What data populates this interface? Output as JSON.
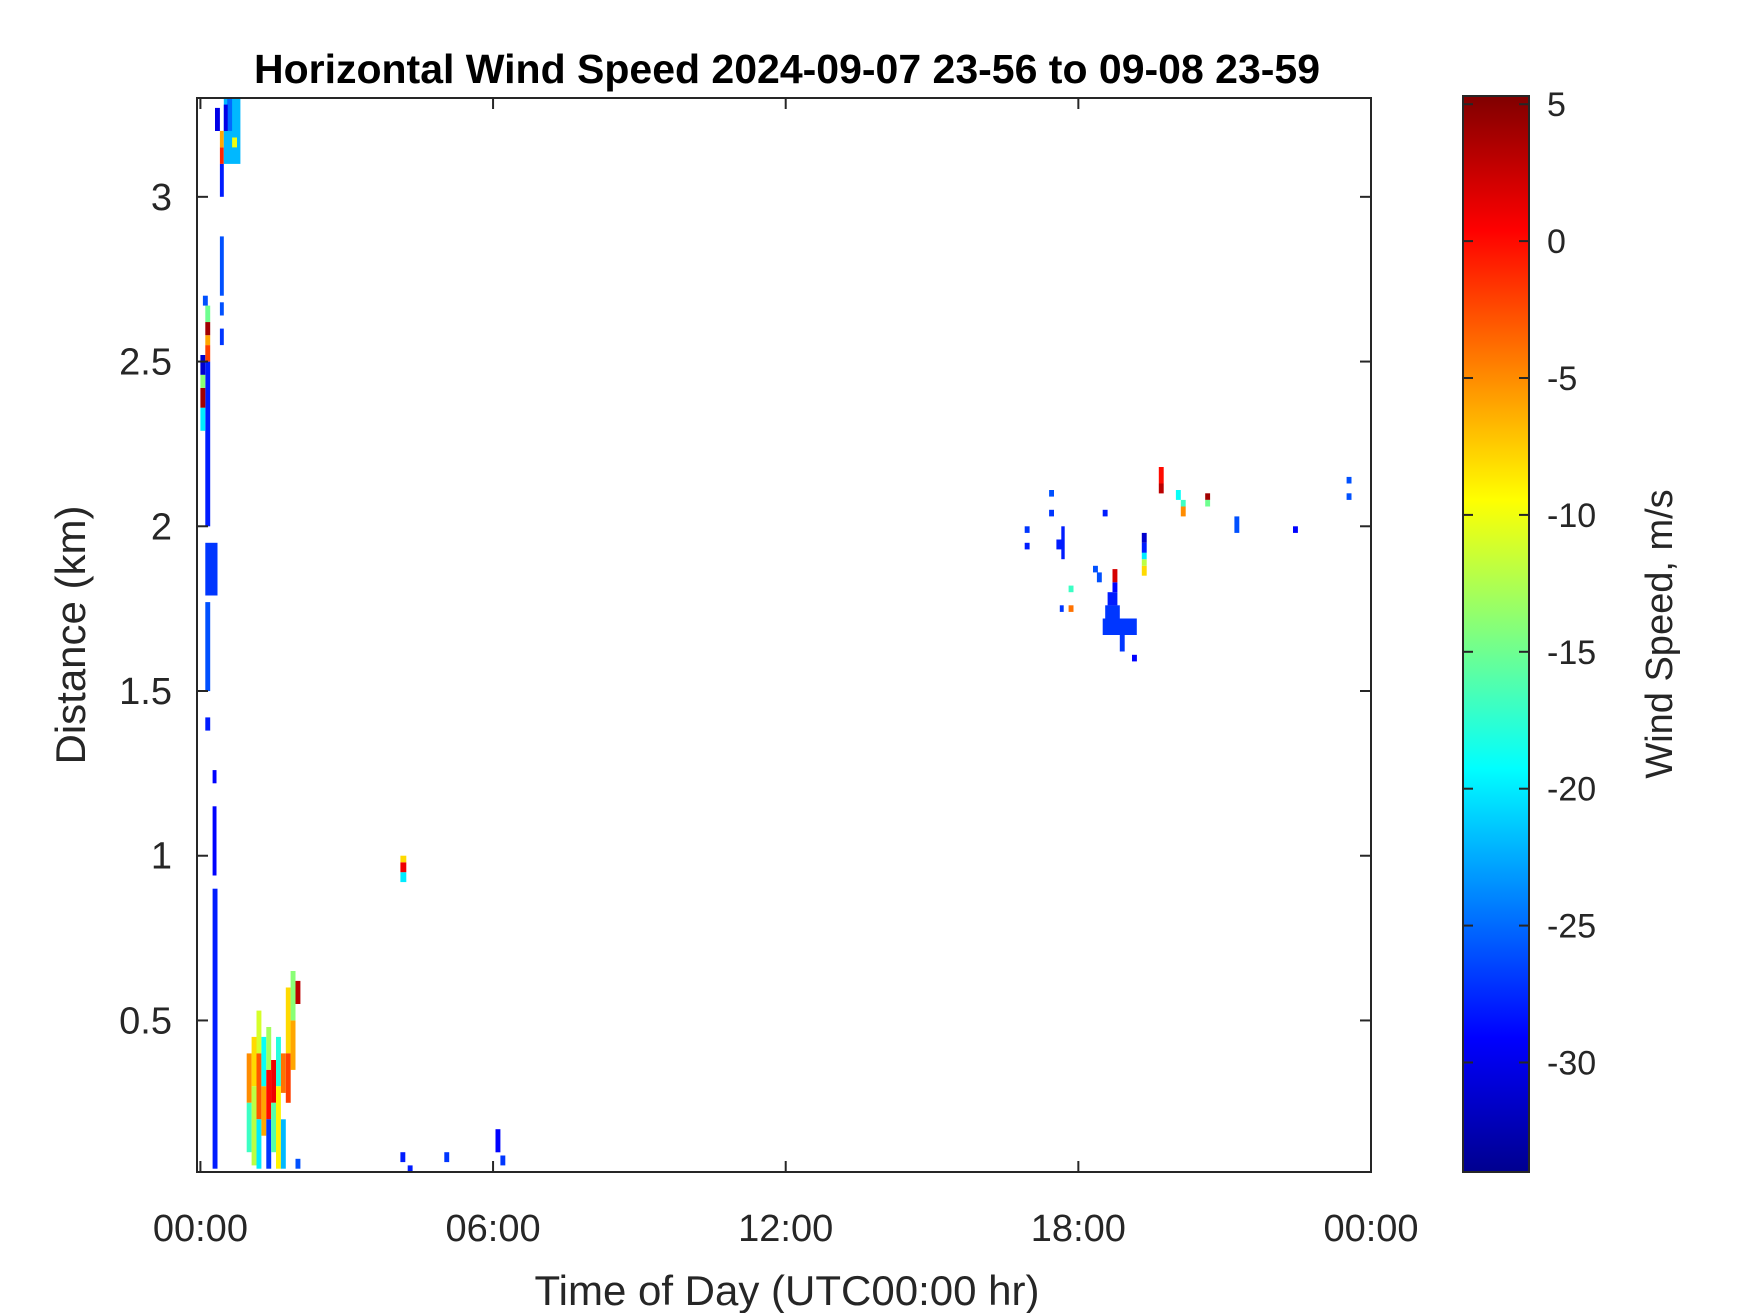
{
  "chart_data": {
    "type": "heatmap",
    "title": "Horizontal Wind Speed 2024-09-07 23-56 to 09-08 23-59",
    "xlabel": "Time of Day (UTC00:00 hr)",
    "ylabel": "Distance (km)",
    "x_ticks": [
      "00:00",
      "06:00",
      "12:00",
      "18:00",
      "00:00"
    ],
    "x_tick_hours": [
      0,
      6,
      12,
      18,
      24
    ],
    "xlim_hours": [
      -0.07,
      24.0
    ],
    "y_ticks": [
      "0.5",
      "1",
      "1.5",
      "2",
      "2.5",
      "3"
    ],
    "y_tick_values": [
      0.5,
      1.0,
      1.5,
      2.0,
      2.5,
      3.0
    ],
    "ylim": [
      0.04,
      3.3
    ],
    "grid": false,
    "colorbar": {
      "label": "Wind Speed, m/s",
      "range": [
        -34,
        5.3
      ],
      "ticks": [
        "5",
        "0",
        "-5",
        "-10",
        "-15",
        "-20",
        "-25",
        "-30"
      ],
      "tick_values": [
        5,
        0,
        -5,
        -10,
        -15,
        -20,
        -25,
        -30
      ],
      "colormap": "jet"
    },
    "cells": [
      {
        "t0": 0.25,
        "t1": 0.35,
        "d0": 0.05,
        "d1": 0.9,
        "v": -28
      },
      {
        "t0": 0.25,
        "t1": 0.33,
        "d0": 0.94,
        "d1": 1.15,
        "v": -29
      },
      {
        "t0": 0.25,
        "t1": 0.33,
        "d0": 1.22,
        "d1": 1.26,
        "v": -29
      },
      {
        "t0": 0.1,
        "t1": 0.2,
        "d0": 1.38,
        "d1": 1.42,
        "v": -28
      },
      {
        "t0": 0.1,
        "t1": 0.2,
        "d0": 1.5,
        "d1": 1.77,
        "v": -26
      },
      {
        "t0": 0.1,
        "t1": 0.35,
        "d0": 1.79,
        "d1": 1.95,
        "v": -27
      },
      {
        "t0": 0.1,
        "t1": 0.2,
        "d0": 2.0,
        "d1": 2.5,
        "v": -28
      },
      {
        "t0": 0.0,
        "t1": 0.1,
        "d0": 2.29,
        "d1": 2.36,
        "v": -20
      },
      {
        "t0": 0.0,
        "t1": 0.1,
        "d0": 2.36,
        "d1": 2.42,
        "v": 4
      },
      {
        "t0": 0.0,
        "t1": 0.1,
        "d0": 2.42,
        "d1": 2.46,
        "v": -14
      },
      {
        "t0": 0.0,
        "t1": 0.1,
        "d0": 2.46,
        "d1": 2.52,
        "v": -31
      },
      {
        "t0": 0.1,
        "t1": 0.2,
        "d0": 2.5,
        "d1": 2.55,
        "v": -2
      },
      {
        "t0": 0.1,
        "t1": 0.2,
        "d0": 2.55,
        "d1": 2.58,
        "v": -6
      },
      {
        "t0": 0.1,
        "t1": 0.2,
        "d0": 2.58,
        "d1": 2.62,
        "v": 4
      },
      {
        "t0": 0.1,
        "t1": 0.2,
        "d0": 2.62,
        "d1": 2.67,
        "v": -15
      },
      {
        "t0": 0.05,
        "t1": 0.15,
        "d0": 2.67,
        "d1": 2.7,
        "v": -26
      },
      {
        "t0": 0.4,
        "t1": 0.48,
        "d0": 2.55,
        "d1": 2.6,
        "v": -27
      },
      {
        "t0": 0.4,
        "t1": 0.48,
        "d0": 2.64,
        "d1": 2.68,
        "v": -26
      },
      {
        "t0": 0.4,
        "t1": 0.48,
        "d0": 2.7,
        "d1": 2.88,
        "v": -26
      },
      {
        "t0": 0.4,
        "t1": 0.48,
        "d0": 3.0,
        "d1": 3.1,
        "v": -28
      },
      {
        "t0": 0.4,
        "t1": 0.48,
        "d0": 3.1,
        "d1": 3.15,
        "v": -1
      },
      {
        "t0": 0.4,
        "t1": 0.48,
        "d0": 3.15,
        "d1": 3.2,
        "v": -6
      },
      {
        "t0": 0.3,
        "t1": 0.4,
        "d0": 3.2,
        "d1": 3.27,
        "v": -30
      },
      {
        "t0": 0.48,
        "t1": 0.82,
        "d0": 3.1,
        "d1": 3.3,
        "v": -22
      },
      {
        "t0": 0.55,
        "t1": 0.65,
        "d0": 3.2,
        "d1": 3.3,
        "v": -25
      },
      {
        "t0": 0.65,
        "t1": 0.75,
        "d0": 3.15,
        "d1": 3.18,
        "v": -10
      },
      {
        "t0": 0.48,
        "t1": 0.56,
        "d0": 3.2,
        "d1": 3.28,
        "v": -30
      },
      {
        "t0": 0.95,
        "t1": 1.05,
        "d0": 0.25,
        "d1": 0.4,
        "v": -5
      },
      {
        "t0": 0.95,
        "t1": 1.05,
        "d0": 0.1,
        "d1": 0.25,
        "v": -17
      },
      {
        "t0": 1.05,
        "t1": 1.15,
        "d0": 0.3,
        "d1": 0.45,
        "v": -8
      },
      {
        "t0": 1.05,
        "t1": 1.15,
        "d0": 0.06,
        "d1": 0.3,
        "v": -12
      },
      {
        "t0": 1.15,
        "t1": 1.25,
        "d0": 0.4,
        "d1": 0.53,
        "v": -11
      },
      {
        "t0": 1.15,
        "t1": 1.25,
        "d0": 0.2,
        "d1": 0.4,
        "v": -3
      },
      {
        "t0": 1.15,
        "t1": 1.25,
        "d0": 0.05,
        "d1": 0.2,
        "v": -20
      },
      {
        "t0": 1.25,
        "t1": 1.35,
        "d0": 0.3,
        "d1": 0.45,
        "v": -19
      },
      {
        "t0": 1.25,
        "t1": 1.35,
        "d0": 0.15,
        "d1": 0.3,
        "v": -6
      },
      {
        "t0": 1.35,
        "t1": 1.45,
        "d0": 0.35,
        "d1": 0.48,
        "v": -13
      },
      {
        "t0": 1.35,
        "t1": 1.45,
        "d0": 0.2,
        "d1": 0.35,
        "v": 0
      },
      {
        "t0": 1.35,
        "t1": 1.45,
        "d0": 0.05,
        "d1": 0.2,
        "v": -27
      },
      {
        "t0": 1.45,
        "t1": 1.55,
        "d0": 0.25,
        "d1": 0.38,
        "v": 1
      },
      {
        "t0": 1.45,
        "t1": 1.55,
        "d0": 0.1,
        "d1": 0.25,
        "v": -16
      },
      {
        "t0": 1.55,
        "t1": 1.65,
        "d0": 0.3,
        "d1": 0.45,
        "v": -18
      },
      {
        "t0": 1.55,
        "t1": 1.65,
        "d0": 0.05,
        "d1": 0.3,
        "v": -9
      },
      {
        "t0": 1.65,
        "t1": 1.75,
        "d0": 0.28,
        "d1": 0.4,
        "v": -4
      },
      {
        "t0": 1.65,
        "t1": 1.75,
        "d0": 0.05,
        "d1": 0.2,
        "v": -22
      },
      {
        "t0": 1.75,
        "t1": 1.85,
        "d0": 0.4,
        "d1": 0.6,
        "v": -8
      },
      {
        "t0": 1.75,
        "t1": 1.85,
        "d0": 0.25,
        "d1": 0.4,
        "v": -2
      },
      {
        "t0": 1.85,
        "t1": 1.95,
        "d0": 0.5,
        "d1": 0.65,
        "v": -14
      },
      {
        "t0": 1.85,
        "t1": 1.95,
        "d0": 0.35,
        "d1": 0.5,
        "v": -6
      },
      {
        "t0": 1.95,
        "t1": 2.05,
        "d0": 0.55,
        "d1": 0.62,
        "v": 3
      },
      {
        "t0": 1.95,
        "t1": 2.05,
        "d0": 0.05,
        "d1": 0.08,
        "v": -26
      },
      {
        "t0": 4.1,
        "t1": 4.22,
        "d0": 0.92,
        "d1": 0.95,
        "v": -20
      },
      {
        "t0": 4.1,
        "t1": 4.22,
        "d0": 0.95,
        "d1": 0.98,
        "v": 1
      },
      {
        "t0": 4.1,
        "t1": 4.22,
        "d0": 0.98,
        "d1": 1.0,
        "v": -8
      },
      {
        "t0": 4.1,
        "t1": 4.2,
        "d0": 0.07,
        "d1": 0.1,
        "v": -28
      },
      {
        "t0": 4.25,
        "t1": 4.35,
        "d0": 0.04,
        "d1": 0.06,
        "v": -28
      },
      {
        "t0": 5.0,
        "t1": 5.1,
        "d0": 0.07,
        "d1": 0.1,
        "v": -27
      },
      {
        "t0": 6.05,
        "t1": 6.15,
        "d0": 0.1,
        "d1": 0.17,
        "v": -29
      },
      {
        "t0": 6.15,
        "t1": 6.25,
        "d0": 0.06,
        "d1": 0.09,
        "v": -27
      },
      {
        "t0": 16.9,
        "t1": 17.0,
        "d0": 1.93,
        "d1": 1.95,
        "v": -28
      },
      {
        "t0": 16.9,
        "t1": 17.0,
        "d0": 1.98,
        "d1": 2.0,
        "v": -27
      },
      {
        "t0": 17.4,
        "t1": 17.5,
        "d0": 2.03,
        "d1": 2.05,
        "v": -27
      },
      {
        "t0": 17.4,
        "t1": 17.5,
        "d0": 2.09,
        "d1": 2.11,
        "v": -26
      },
      {
        "t0": 17.55,
        "t1": 17.7,
        "d0": 1.93,
        "d1": 1.96,
        "v": -28
      },
      {
        "t0": 17.65,
        "t1": 17.72,
        "d0": 1.9,
        "d1": 2.0,
        "v": -28
      },
      {
        "t0": 17.62,
        "t1": 17.7,
        "d0": 1.74,
        "d1": 1.76,
        "v": -27
      },
      {
        "t0": 17.8,
        "t1": 17.9,
        "d0": 1.74,
        "d1": 1.76,
        "v": -4
      },
      {
        "t0": 17.8,
        "t1": 17.9,
        "d0": 1.8,
        "d1": 1.82,
        "v": -17
      },
      {
        "t0": 18.3,
        "t1": 18.4,
        "d0": 1.86,
        "d1": 1.88,
        "v": -26
      },
      {
        "t0": 18.38,
        "t1": 18.48,
        "d0": 1.83,
        "d1": 1.86,
        "v": -26
      },
      {
        "t0": 18.5,
        "t1": 18.6,
        "d0": 2.03,
        "d1": 2.05,
        "v": -28
      },
      {
        "t0": 18.5,
        "t1": 19.2,
        "d0": 1.67,
        "d1": 1.72,
        "v": -27
      },
      {
        "t0": 18.55,
        "t1": 18.85,
        "d0": 1.72,
        "d1": 1.76,
        "v": -27
      },
      {
        "t0": 18.6,
        "t1": 18.8,
        "d0": 1.76,
        "d1": 1.8,
        "v": -28
      },
      {
        "t0": 18.7,
        "t1": 18.8,
        "d0": 1.8,
        "d1": 1.83,
        "v": -29
      },
      {
        "t0": 18.7,
        "t1": 18.8,
        "d0": 1.83,
        "d1": 1.87,
        "v": 2
      },
      {
        "t0": 18.85,
        "t1": 18.95,
        "d0": 1.62,
        "d1": 1.67,
        "v": -27
      },
      {
        "t0": 19.1,
        "t1": 19.2,
        "d0": 1.59,
        "d1": 1.61,
        "v": -29
      },
      {
        "t0": 19.3,
        "t1": 19.4,
        "d0": 1.85,
        "d1": 1.88,
        "v": -8
      },
      {
        "t0": 19.3,
        "t1": 19.4,
        "d0": 1.88,
        "d1": 1.9,
        "v": -12
      },
      {
        "t0": 19.3,
        "t1": 19.4,
        "d0": 1.9,
        "d1": 1.92,
        "v": -20
      },
      {
        "t0": 19.3,
        "t1": 19.4,
        "d0": 1.92,
        "d1": 1.95,
        "v": -28
      },
      {
        "t0": 19.3,
        "t1": 19.4,
        "d0": 1.95,
        "d1": 1.98,
        "v": -31
      },
      {
        "t0": 19.65,
        "t1": 19.75,
        "d0": 2.1,
        "d1": 2.13,
        "v": 3
      },
      {
        "t0": 19.65,
        "t1": 19.75,
        "d0": 2.13,
        "d1": 2.18,
        "v": 0
      },
      {
        "t0": 20.0,
        "t1": 20.1,
        "d0": 2.08,
        "d1": 2.11,
        "v": -19
      },
      {
        "t0": 20.1,
        "t1": 20.2,
        "d0": 2.06,
        "d1": 2.08,
        "v": -17
      },
      {
        "t0": 20.1,
        "t1": 20.2,
        "d0": 2.03,
        "d1": 2.06,
        "v": -5
      },
      {
        "t0": 20.6,
        "t1": 20.7,
        "d0": 2.08,
        "d1": 2.1,
        "v": 4
      },
      {
        "t0": 20.6,
        "t1": 20.7,
        "d0": 2.06,
        "d1": 2.08,
        "v": -15
      },
      {
        "t0": 21.2,
        "t1": 21.3,
        "d0": 1.98,
        "d1": 2.03,
        "v": -26
      },
      {
        "t0": 22.4,
        "t1": 22.5,
        "d0": 1.98,
        "d1": 2.0,
        "v": -29
      },
      {
        "t0": 23.5,
        "t1": 23.6,
        "d0": 2.08,
        "d1": 2.1,
        "v": -26
      },
      {
        "t0": 23.5,
        "t1": 23.6,
        "d0": 2.13,
        "d1": 2.15,
        "v": -26
      }
    ]
  }
}
